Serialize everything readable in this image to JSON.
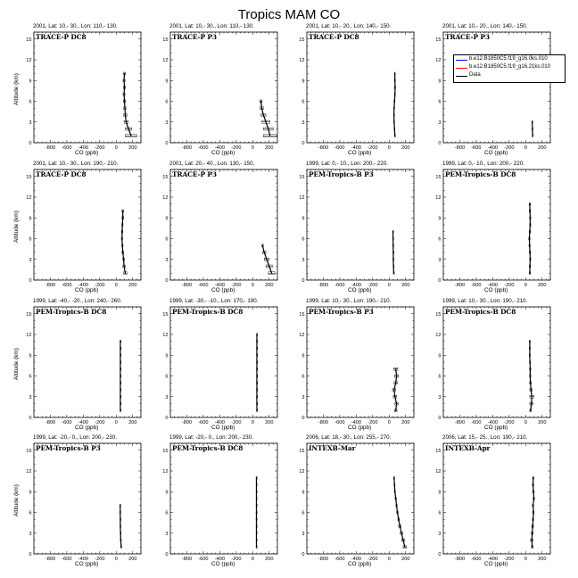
{
  "title": "Tropics MAM CO",
  "legend": {
    "entries": [
      {
        "label": "b.e12.B1850C5.f19_g16.0ks.010",
        "color": "#0000ff"
      },
      {
        "label": "b.e12.B1850C5.f19_g16.21ks.010",
        "color": "#ff0000"
      },
      {
        "label": "Data",
        "color": "#000000"
      }
    ]
  },
  "axes": {
    "xlabel": "CO (ppb)",
    "ylabel": "Altitude (km)",
    "xlim": [
      -1000,
      300
    ],
    "ylim": [
      0,
      16
    ],
    "xticks": [
      "-800",
      "-600",
      "-400",
      "-200",
      "0",
      "200"
    ],
    "yticks": [
      "0",
      "3",
      "6",
      "9",
      "12",
      "15"
    ]
  },
  "chart_data": [
    {
      "type": "line",
      "subtitle": "2001, Lat: 10,- 30., Lon: 110,- 130.",
      "campaign": "TRACE-P DC8",
      "series": [
        {
          "name": "Data",
          "x": [
            180,
            150,
            120,
            110,
            105,
            100,
            95,
            100,
            95,
            100
          ],
          "y": [
            1,
            2,
            3,
            4,
            5,
            6,
            7,
            8,
            9,
            10
          ],
          "xerr": [
            70,
            40,
            25,
            20,
            15,
            15,
            12,
            12,
            12,
            12
          ]
        }
      ]
    },
    {
      "type": "line",
      "subtitle": "2001, Lat: 10,- 30., Lon: 110,- 130.",
      "campaign": "TRACE-P P3",
      "series": [
        {
          "name": "Data",
          "x": [
            210,
            190,
            160,
            130,
            110,
            100
          ],
          "y": [
            1,
            2,
            3,
            4,
            5,
            6
          ],
          "xerr": [
            80,
            60,
            50,
            30,
            20,
            15
          ]
        }
      ]
    },
    {
      "type": "line",
      "subtitle": "2001, Lat: 10,- 20., Lon: 140,- 150.",
      "campaign": "TRACE-P DC8",
      "series": [
        {
          "name": "Data",
          "x": [
            70,
            65,
            60,
            58,
            60,
            65,
            70,
            72,
            70,
            68
          ],
          "y": [
            1,
            2,
            3,
            4,
            5,
            6,
            7,
            8,
            9,
            10
          ],
          "xerr": [
            5,
            5,
            5,
            5,
            5,
            6,
            6,
            6,
            5,
            5
          ]
        }
      ]
    },
    {
      "type": "line",
      "subtitle": "2001, Lat: 10,- 20., Lon: 140,- 150.",
      "campaign": "TRACE-P P3",
      "series": [
        {
          "name": "Data",
          "x": [
            85,
            82,
            80
          ],
          "y": [
            1,
            2,
            3
          ],
          "xerr": [
            4,
            4,
            4
          ]
        }
      ]
    },
    {
      "type": "line",
      "subtitle": "2001, Lat: 10,- 30., Lon: 190,- 210.",
      "campaign": "TRACE-P DC8",
      "series": [
        {
          "name": "Data",
          "x": [
            110,
            95,
            90,
            80,
            75,
            70,
            72,
            75,
            80,
            80
          ],
          "y": [
            1,
            2,
            3,
            4,
            5,
            6,
            7,
            8,
            9,
            10
          ],
          "xerr": [
            20,
            15,
            10,
            10,
            8,
            8,
            8,
            8,
            10,
            10
          ]
        }
      ]
    },
    {
      "type": "line",
      "subtitle": "2001, Lat: 20,- 40., Lon: 130,- 150.",
      "campaign": "TRACE-P P3",
      "series": [
        {
          "name": "Data",
          "x": [
            230,
            200,
            170,
            140,
            120
          ],
          "y": [
            1,
            2,
            3,
            4,
            5
          ],
          "xerr": [
            40,
            40,
            30,
            20,
            10
          ]
        }
      ]
    },
    {
      "type": "line",
      "subtitle": "1999, Lat: 0,- 10., Lon: 200,- 220.",
      "campaign": "PEM-Tropics-B P3",
      "series": [
        {
          "name": "Data",
          "x": [
            55,
            52,
            50,
            50,
            48,
            47,
            46
          ],
          "y": [
            1,
            2,
            3,
            4,
            5,
            6,
            7
          ],
          "xerr": [
            3,
            3,
            3,
            3,
            3,
            3,
            3
          ]
        }
      ]
    },
    {
      "type": "line",
      "subtitle": "1999, Lat: 0,- 10., Lon: 200,- 220.",
      "campaign": "PEM-Tropics-B DC8",
      "series": [
        {
          "name": "Data",
          "x": [
            50,
            52,
            55,
            52,
            48,
            45,
            50,
            55,
            55,
            52,
            50
          ],
          "y": [
            1,
            2,
            3,
            4,
            5,
            6,
            7,
            8,
            9,
            10,
            11
          ],
          "xerr": [
            8,
            8,
            8,
            8,
            8,
            8,
            8,
            8,
            8,
            8,
            8
          ]
        }
      ]
    },
    {
      "type": "line",
      "subtitle": "1999, Lat: -40,- -20., Lon: 240,- 260.",
      "campaign": "PEM-Tropics-B DC8",
      "series": [
        {
          "name": "Data",
          "x": [
            50,
            50,
            50,
            50,
            50,
            50,
            50,
            50,
            50,
            50,
            50
          ],
          "y": [
            1,
            2,
            3,
            4,
            5,
            6,
            7,
            8,
            9,
            10,
            11
          ],
          "xerr": [
            2,
            2,
            2,
            2,
            2,
            2,
            2,
            2,
            2,
            2,
            2
          ]
        }
      ]
    },
    {
      "type": "line",
      "subtitle": "1999, Lat: -30,- -10., Lon: 170,- 190.",
      "campaign": "PEM-Tropics-B DC8",
      "series": [
        {
          "name": "Data",
          "x": [
            50,
            50,
            50,
            50,
            50,
            50,
            50,
            50,
            50,
            50,
            50,
            50
          ],
          "y": [
            1,
            2,
            3,
            4,
            5,
            6,
            7,
            8,
            9,
            10,
            11,
            12
          ],
          "xerr": [
            2,
            2,
            2,
            2,
            2,
            2,
            2,
            2,
            2,
            2,
            2,
            2
          ]
        }
      ]
    },
    {
      "type": "line",
      "subtitle": "1999, Lat: 10,- 30., Lon: 190,- 210.",
      "campaign": "PEM-Tropics-B P3",
      "series": [
        {
          "name": "Data",
          "x": [
            80,
            90,
            70,
            60,
            80,
            90,
            80
          ],
          "y": [
            1,
            2,
            3,
            4,
            5,
            6,
            7
          ],
          "xerr": [
            15,
            20,
            20,
            20,
            20,
            25,
            25
          ]
        }
      ]
    },
    {
      "type": "line",
      "subtitle": "1999, Lat: 10,- 30., Lon: 190,- 210.",
      "campaign": "PEM-Tropics-B DC8",
      "series": [
        {
          "name": "Data",
          "x": [
            60,
            70,
            75,
            65,
            58,
            55,
            55,
            52,
            50,
            50,
            50
          ],
          "y": [
            1,
            2,
            3,
            4,
            5,
            6,
            7,
            8,
            9,
            10,
            11
          ],
          "xerr": [
            10,
            20,
            25,
            15,
            10,
            8,
            8,
            6,
            6,
            6,
            6
          ]
        }
      ]
    },
    {
      "type": "line",
      "subtitle": "1999, Lat: -20,- 0., Lon: 200,- 230.",
      "campaign": "PEM-Tropics-B P3",
      "series": [
        {
          "name": "Data",
          "x": [
            60,
            55,
            52,
            50,
            50,
            48,
            48
          ],
          "y": [
            1,
            2,
            3,
            4,
            5,
            6,
            7
          ],
          "xerr": [
            4,
            4,
            4,
            4,
            4,
            4,
            4
          ]
        }
      ]
    },
    {
      "type": "line",
      "subtitle": "1999, Lat: -20,- 0., Lon: 200,- 230.",
      "campaign": "PEM-Tropics-B DC8",
      "series": [
        {
          "name": "Data",
          "x": [
            45,
            45,
            45,
            45,
            45,
            45,
            45,
            45,
            45,
            45,
            45
          ],
          "y": [
            1,
            2,
            3,
            4,
            5,
            6,
            7,
            8,
            9,
            10,
            11
          ],
          "xerr": [
            2,
            2,
            2,
            2,
            2,
            2,
            2,
            2,
            2,
            2,
            2
          ]
        }
      ]
    },
    {
      "type": "line",
      "subtitle": "2006, Lat: 18,- 30., Lon: 255,- 270.",
      "campaign": "INTEXB-Mar",
      "series": [
        {
          "name": "Data",
          "x": [
            190,
            170,
            150,
            130,
            115,
            100,
            90,
            80,
            70,
            65,
            60
          ],
          "y": [
            1,
            2,
            3,
            4,
            5,
            6,
            7,
            8,
            9,
            10,
            11
          ],
          "xerr": [
            20,
            20,
            15,
            15,
            10,
            10,
            8,
            8,
            6,
            6,
            6
          ]
        }
      ]
    },
    {
      "type": "line",
      "subtitle": "2006, Lat: 15,- 25., Lon: 190,- 210.",
      "campaign": "INTEXB-Apr",
      "series": [
        {
          "name": "Data",
          "x": [
            80,
            75,
            80,
            85,
            90,
            95,
            90,
            100,
            95,
            90,
            92
          ],
          "y": [
            1,
            2,
            3,
            4,
            5,
            6,
            7,
            8,
            9,
            10,
            11
          ],
          "xerr": [
            10,
            15,
            10,
            10,
            8,
            8,
            8,
            8,
            8,
            8,
            8
          ]
        }
      ]
    }
  ]
}
